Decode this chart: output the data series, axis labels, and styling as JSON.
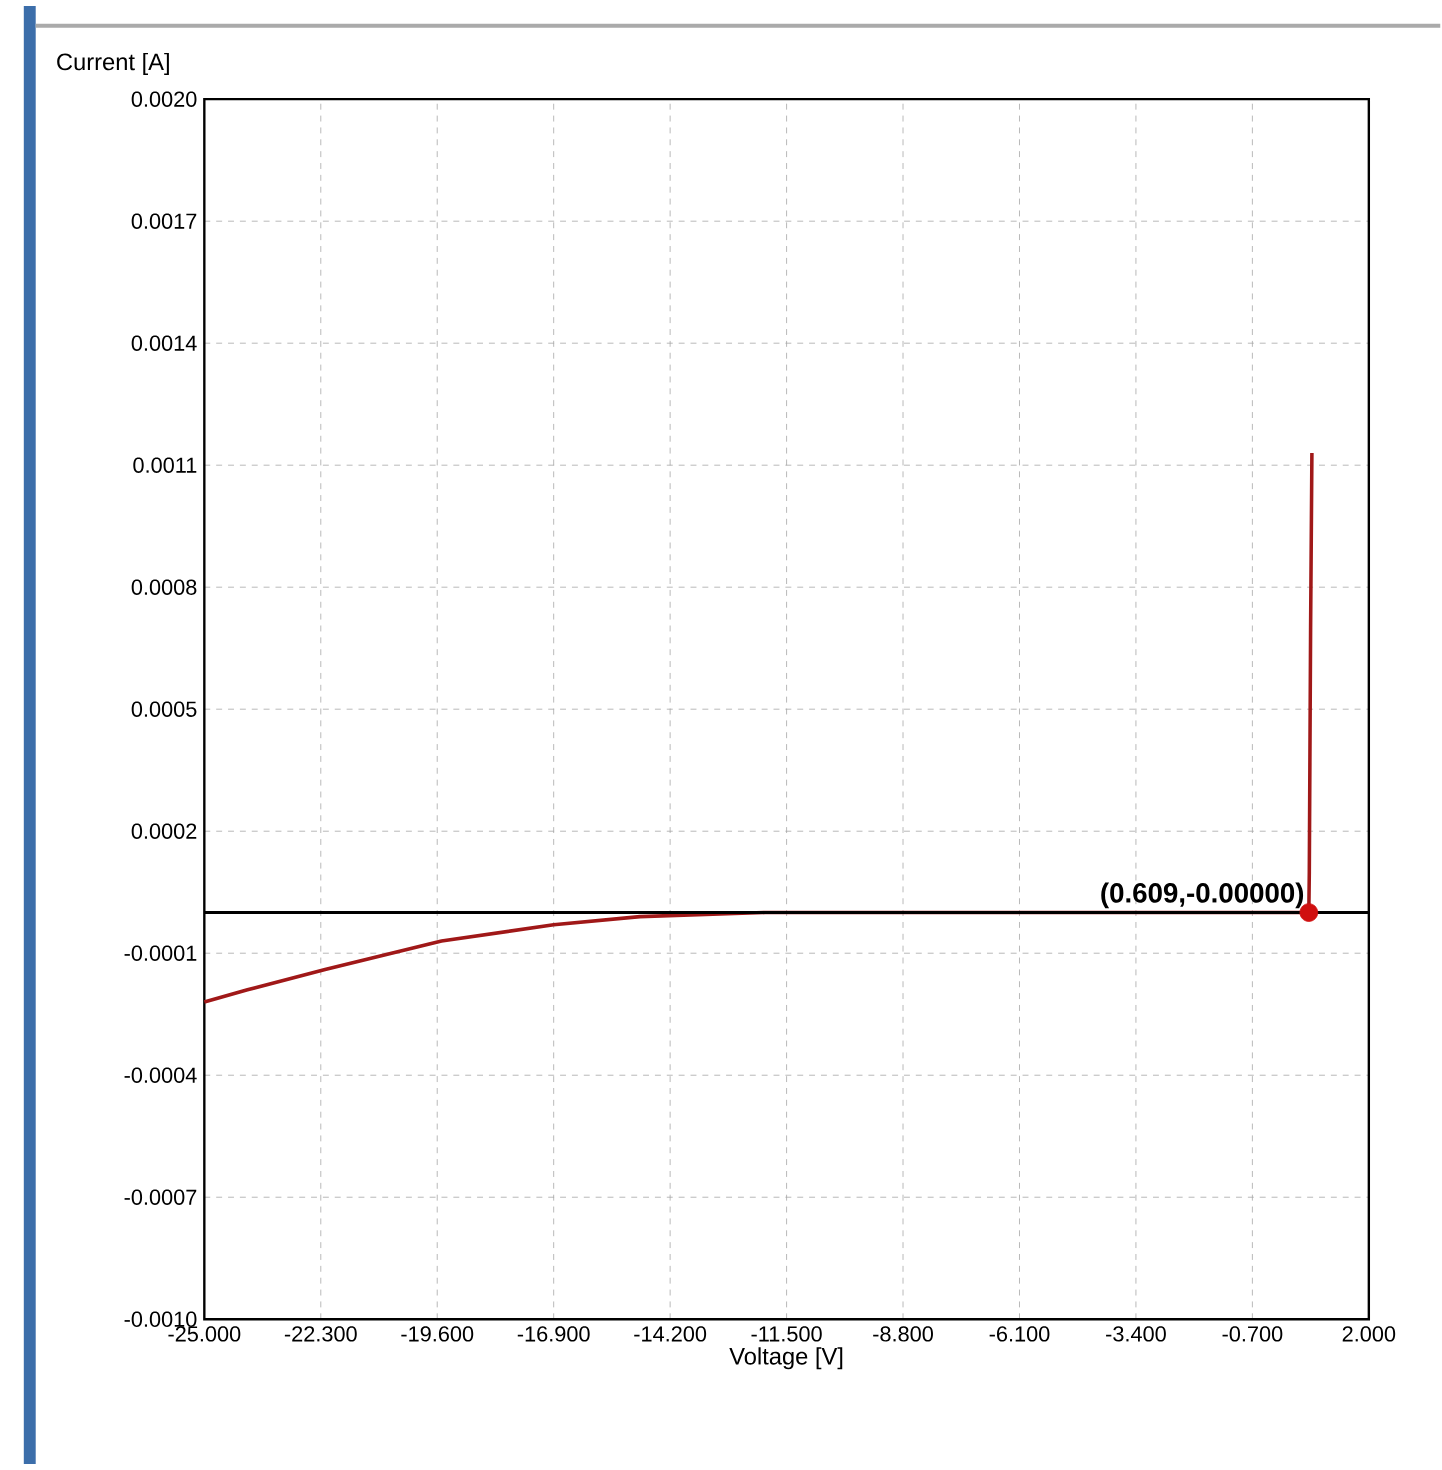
{
  "chart_data": {
    "type": "line",
    "xlabel": "Voltage [V]",
    "ylabel": "Current [A]",
    "xlim": [
      -25,
      2
    ],
    "ylim": [
      -0.001,
      0.002
    ],
    "xticks": [
      {
        "value": -25,
        "label": "-25.000"
      },
      {
        "value": -22.3,
        "label": "-22.300"
      },
      {
        "value": -19.6,
        "label": "-19.600"
      },
      {
        "value": -16.9,
        "label": "-16.900"
      },
      {
        "value": -14.2,
        "label": "-14.200"
      },
      {
        "value": -11.5,
        "label": "-11.500"
      },
      {
        "value": -8.8,
        "label": "-8.800"
      },
      {
        "value": -6.1,
        "label": "-6.100"
      },
      {
        "value": -3.4,
        "label": "-3.400"
      },
      {
        "value": -0.7,
        "label": "-0.700"
      },
      {
        "value": 2,
        "label": "2.000"
      }
    ],
    "yticks": [
      {
        "value": -0.001,
        "label": "-0.0010"
      },
      {
        "value": -0.0007,
        "label": "-0.0007"
      },
      {
        "value": -0.0004,
        "label": "-0.0004"
      },
      {
        "value": -0.0001,
        "label": "-0.0001"
      },
      {
        "value": 0.0002,
        "label": "0.0002"
      },
      {
        "value": 0.0005,
        "label": "0.0005"
      },
      {
        "value": 0.0008,
        "label": "0.0008"
      },
      {
        "value": 0.0011,
        "label": "0.0011"
      },
      {
        "value": 0.0014,
        "label": "0.0014"
      },
      {
        "value": 0.0017,
        "label": "0.0017"
      },
      {
        "value": 0.002,
        "label": "0.0020"
      }
    ],
    "grid": true,
    "line_style": "solid",
    "series": [
      {
        "color": "#a01818",
        "marker": "none",
        "x": [
          -25,
          -24,
          -22.2,
          -19.5,
          -16.9,
          -14.9,
          -12,
          -5,
          0,
          0.5,
          0.609,
          0.62,
          0.65,
          0.68
        ],
        "values": [
          -0.00022,
          -0.00019,
          -0.00014,
          -7e-05,
          -3e-05,
          -1e-05,
          0,
          0,
          0,
          0,
          0,
          0.0001,
          0.0007,
          0.00113
        ]
      },
      {
        "type": "scatter",
        "color": "#d01010",
        "marker": "circle",
        "x": [
          0.609
        ],
        "values": [
          0
        ]
      }
    ],
    "ref_lines": [
      {
        "axis": "y",
        "value": 0,
        "color": "#000000"
      }
    ],
    "annotations": [
      {
        "text": "(0.609,-0.00000)",
        "x": 0.609,
        "y": 0
      }
    ]
  }
}
